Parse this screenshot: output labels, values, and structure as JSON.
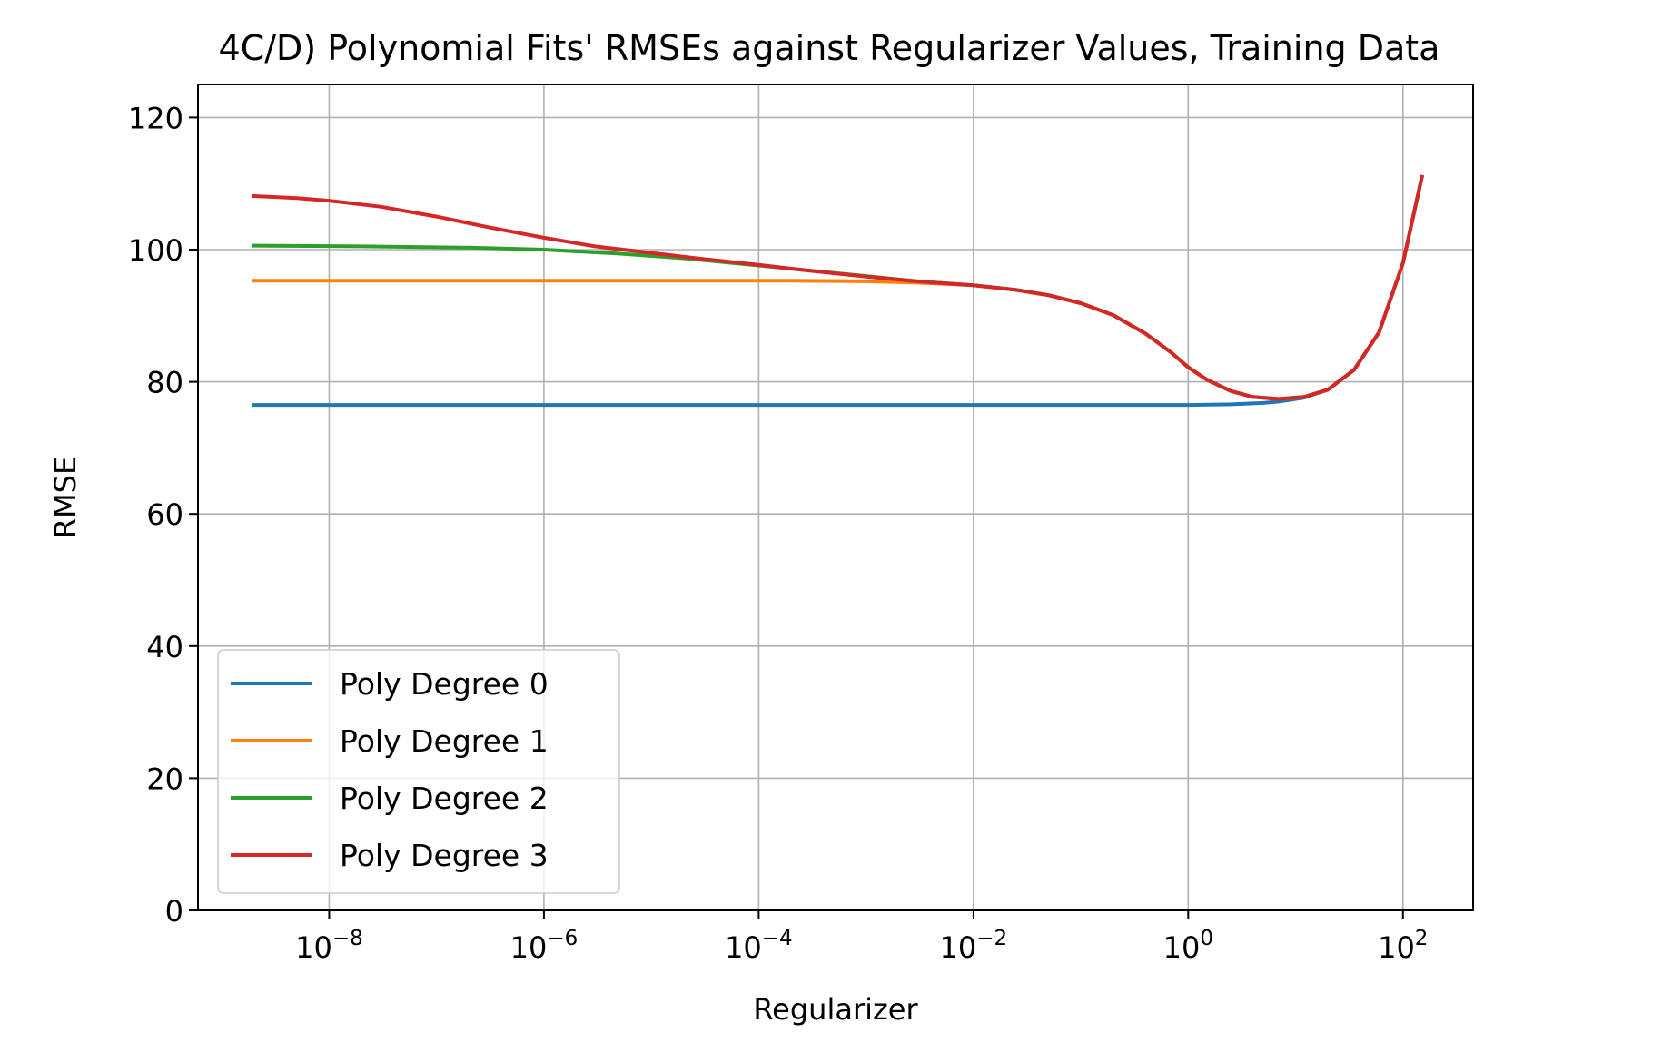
{
  "chart_data": {
    "type": "line",
    "title": "4C/D) Polynomial Fits' RMSEs against Regularizer Values, Training Data",
    "xlabel": "Regularizer",
    "ylabel": "RMSE",
    "xscale": "log",
    "xlim": [
      6e-10,
      450
    ],
    "ylim": [
      0,
      125
    ],
    "xticks": [
      1e-08,
      1e-06,
      0.0001,
      0.01,
      1,
      100
    ],
    "xtick_labels": [
      {
        "base": "10",
        "exp": "−8"
      },
      {
        "base": "10",
        "exp": "−6"
      },
      {
        "base": "10",
        "exp": "−4"
      },
      {
        "base": "10",
        "exp": "−2"
      },
      {
        "base": "10",
        "exp": "0"
      },
      {
        "base": "10",
        "exp": "2"
      }
    ],
    "yticks": [
      0,
      20,
      40,
      60,
      80,
      100,
      120
    ],
    "ytick_labels": [
      "0",
      "20",
      "40",
      "60",
      "80",
      "100",
      "120"
    ],
    "grid": true,
    "legend_position": "lower-left",
    "series": [
      {
        "name": "Poly Degree 0",
        "color": "#1f77b4",
        "x": [
          2e-09,
          2e-08,
          2e-07,
          2e-06,
          2e-05,
          0.0002,
          0.002,
          0.02,
          0.2,
          1,
          2.5,
          5,
          7,
          12,
          20,
          35,
          60,
          100,
          150
        ],
        "y": [
          76.5,
          76.5,
          76.5,
          76.5,
          76.5,
          76.5,
          76.5,
          76.5,
          76.5,
          76.5,
          76.6,
          76.8,
          77.0,
          77.6,
          78.8,
          81.8,
          87.5,
          98,
          111
        ]
      },
      {
        "name": "Poly Degree 1",
        "color": "#ff7f0e",
        "x": [
          2e-09,
          2e-08,
          2e-07,
          2e-06,
          2e-05,
          0.0002,
          0.001,
          0.003,
          0.01,
          0.025,
          0.05,
          0.1,
          0.2,
          0.4,
          0.7,
          1,
          1.5,
          2.5,
          4,
          7,
          12,
          20,
          35,
          60,
          100,
          150
        ],
        "y": [
          95.3,
          95.3,
          95.3,
          95.3,
          95.3,
          95.3,
          95.2,
          95.0,
          94.6,
          93.9,
          93.1,
          91.9,
          90.1,
          87.3,
          84.4,
          82.2,
          80.3,
          78.6,
          77.7,
          77.4,
          77.7,
          78.8,
          81.8,
          87.5,
          98,
          111
        ]
      },
      {
        "name": "Poly Degree 2",
        "color": "#2ca02c",
        "x": [
          2e-09,
          2e-08,
          2e-07,
          1e-06,
          5e-06,
          2e-05,
          0.0001,
          0.001,
          0.003,
          0.01,
          0.025,
          0.05,
          0.1,
          0.2,
          0.4,
          0.7,
          1,
          1.5,
          2.5,
          4,
          7,
          12,
          20,
          35,
          60,
          100,
          150
        ],
        "y": [
          100.6,
          100.5,
          100.3,
          100.0,
          99.4,
          98.7,
          97.6,
          96.0,
          95.2,
          94.6,
          93.9,
          93.1,
          91.9,
          90.1,
          87.3,
          84.4,
          82.2,
          80.3,
          78.6,
          77.7,
          77.4,
          77.7,
          78.8,
          81.8,
          87.5,
          98,
          111
        ]
      },
      {
        "name": "Poly Degree 3",
        "color": "#d62728",
        "x": [
          2e-09,
          5e-09,
          1e-08,
          3e-08,
          1e-07,
          3e-07,
          1e-06,
          3e-06,
          1e-05,
          3e-05,
          0.0001,
          0.0003,
          0.001,
          0.003,
          0.01,
          0.025,
          0.05,
          0.1,
          0.2,
          0.4,
          0.7,
          1,
          1.5,
          2.5,
          4,
          7,
          12,
          20,
          35,
          60,
          100,
          150
        ],
        "y": [
          108.1,
          107.8,
          107.4,
          106.5,
          105.0,
          103.4,
          101.8,
          100.5,
          99.5,
          98.6,
          97.7,
          96.8,
          95.9,
          95.2,
          94.6,
          93.9,
          93.1,
          91.9,
          90.1,
          87.3,
          84.4,
          82.2,
          80.3,
          78.6,
          77.7,
          77.4,
          77.7,
          78.8,
          81.8,
          87.5,
          98,
          111
        ]
      }
    ]
  }
}
